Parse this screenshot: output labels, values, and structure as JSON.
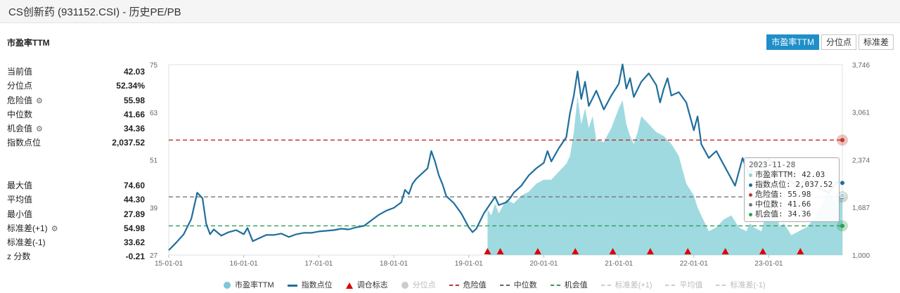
{
  "page_title": "CS创新药 (931152.CSI) - 历史PE/PB",
  "section_title": "市盈率TTM",
  "tabs": [
    {
      "label": "市盈率TTM",
      "active": true
    },
    {
      "label": "分位点",
      "active": false
    },
    {
      "label": "标准差",
      "active": false
    }
  ],
  "stats_top": [
    {
      "label": "当前值",
      "value": "42.03",
      "gear": false
    },
    {
      "label": "分位点",
      "value": "52.34%",
      "gear": false
    },
    {
      "label": "危险值",
      "value": "55.98",
      "gear": true
    },
    {
      "label": "中位数",
      "value": "41.66",
      "gear": false
    },
    {
      "label": "机会值",
      "value": "34.36",
      "gear": true
    },
    {
      "label": "指数点位",
      "value": "2,037.52",
      "gear": false
    }
  ],
  "stats_bottom": [
    {
      "label": "最大值",
      "value": "74.60",
      "gear": false
    },
    {
      "label": "平均值",
      "value": "44.30",
      "gear": false
    },
    {
      "label": "最小值",
      "value": "27.89",
      "gear": false
    },
    {
      "label": "标准差(+1)",
      "value": "54.98",
      "gear": true
    },
    {
      "label": "标准差(-1)",
      "value": "33.62",
      "gear": false
    },
    {
      "label": "z 分数",
      "value": "-0.21",
      "gear": false
    }
  ],
  "tooltip": {
    "date": "2023-11-28",
    "rows": [
      {
        "label": "市盈率TTM: 42.03",
        "color": "#8fd3dc"
      },
      {
        "label": "指数点位: 2,037.52",
        "color": "#1f6e9c"
      },
      {
        "label": "危险值: 55.98",
        "color": "#c0392b"
      },
      {
        "label": "中位数: 41.66",
        "color": "#777777"
      },
      {
        "label": "机会值: 34.36",
        "color": "#2e9e55"
      }
    ]
  },
  "legend": [
    {
      "label": "市盈率TTM",
      "symbol": "circle",
      "color": "#7cc8d4",
      "off": false
    },
    {
      "label": "指数点位",
      "symbol": "line",
      "color": "#1f6e9c",
      "off": false
    },
    {
      "label": "调仓标志",
      "symbol": "triangle",
      "color": "#e00000",
      "off": false
    },
    {
      "label": "分位点",
      "symbol": "circle",
      "color": "#cccccc",
      "off": true
    },
    {
      "label": "危险值",
      "symbol": "dash",
      "color": "#c0392b",
      "off": false
    },
    {
      "label": "中位数",
      "symbol": "dash",
      "color": "#666666",
      "off": false
    },
    {
      "label": "机会值",
      "symbol": "dash",
      "color": "#2e9e55",
      "off": false
    },
    {
      "label": "标准差(+1)",
      "symbol": "dash",
      "color": "#cccccc",
      "off": true
    },
    {
      "label": "平均值",
      "symbol": "dash",
      "color": "#cccccc",
      "off": true
    },
    {
      "label": "标准差(-1)",
      "symbol": "dash",
      "color": "#cccccc",
      "off": true
    }
  ],
  "chart_data": {
    "type": "line",
    "left_axis": {
      "ticks": [
        27,
        39,
        51,
        63,
        75
      ],
      "labels": [
        "27",
        "39",
        "51",
        "63",
        "75"
      ],
      "range": [
        27,
        75
      ]
    },
    "right_axis": {
      "ticks": [
        1000,
        1687,
        2374,
        3061,
        3746
      ],
      "labels": [
        "1,000",
        "1,687",
        "2,374",
        "3,061",
        "3,746"
      ],
      "range": [
        1000,
        3746
      ]
    },
    "x_ticks": [
      {
        "label": "15-01-01",
        "t": 2015.0
      },
      {
        "label": "16-01-01",
        "t": 2016.0
      },
      {
        "label": "17-01-01",
        "t": 2017.0
      },
      {
        "label": "18-01-01",
        "t": 2018.0
      },
      {
        "label": "19-01-01",
        "t": 2019.0
      },
      {
        "label": "20-01-01",
        "t": 2020.0
      },
      {
        "label": "21-01-01",
        "t": 2021.0
      },
      {
        "label": "22-01-01",
        "t": 2022.0
      },
      {
        "label": "23-01-01",
        "t": 2023.0
      }
    ],
    "x_range": [
      2015.0,
      2023.98
    ],
    "hlines": [
      {
        "name": "危险值",
        "value": 55.98,
        "color": "#c0392b"
      },
      {
        "name": "中位数",
        "value": 41.66,
        "color": "#777777"
      },
      {
        "name": "机会值",
        "value": 34.36,
        "color": "#2e9e55"
      }
    ],
    "series": [
      {
        "name": "指数点位",
        "axis": "right",
        "color": "#1f6e9c",
        "points": [
          [
            2015.0,
            1070
          ],
          [
            2015.1,
            1180
          ],
          [
            2015.2,
            1300
          ],
          [
            2015.3,
            1520
          ],
          [
            2015.38,
            1900
          ],
          [
            2015.45,
            1820
          ],
          [
            2015.5,
            1450
          ],
          [
            2015.55,
            1300
          ],
          [
            2015.6,
            1370
          ],
          [
            2015.7,
            1280
          ],
          [
            2015.8,
            1330
          ],
          [
            2015.9,
            1360
          ],
          [
            2016.0,
            1300
          ],
          [
            2016.05,
            1390
          ],
          [
            2016.12,
            1200
          ],
          [
            2016.2,
            1240
          ],
          [
            2016.3,
            1290
          ],
          [
            2016.4,
            1290
          ],
          [
            2016.5,
            1310
          ],
          [
            2016.6,
            1260
          ],
          [
            2016.7,
            1300
          ],
          [
            2016.8,
            1320
          ],
          [
            2016.9,
            1320
          ],
          [
            2017.0,
            1340
          ],
          [
            2017.1,
            1350
          ],
          [
            2017.2,
            1360
          ],
          [
            2017.3,
            1380
          ],
          [
            2017.4,
            1370
          ],
          [
            2017.5,
            1400
          ],
          [
            2017.6,
            1420
          ],
          [
            2017.7,
            1500
          ],
          [
            2017.8,
            1580
          ],
          [
            2017.9,
            1640
          ],
          [
            2018.0,
            1680
          ],
          [
            2018.1,
            1760
          ],
          [
            2018.15,
            1940
          ],
          [
            2018.2,
            1880
          ],
          [
            2018.25,
            2030
          ],
          [
            2018.3,
            2100
          ],
          [
            2018.4,
            2200
          ],
          [
            2018.45,
            2250
          ],
          [
            2018.5,
            2500
          ],
          [
            2018.55,
            2350
          ],
          [
            2018.6,
            2150
          ],
          [
            2018.65,
            2020
          ],
          [
            2018.7,
            1850
          ],
          [
            2018.8,
            1750
          ],
          [
            2018.9,
            1600
          ],
          [
            2019.0,
            1400
          ],
          [
            2019.05,
            1330
          ],
          [
            2019.1,
            1380
          ],
          [
            2019.2,
            1600
          ],
          [
            2019.3,
            1760
          ],
          [
            2019.35,
            1840
          ],
          [
            2019.4,
            1720
          ],
          [
            2019.5,
            1760
          ],
          [
            2019.55,
            1820
          ],
          [
            2019.6,
            1900
          ],
          [
            2019.7,
            2000
          ],
          [
            2019.8,
            2150
          ],
          [
            2019.9,
            2250
          ],
          [
            2020.0,
            2330
          ],
          [
            2020.05,
            2500
          ],
          [
            2020.1,
            2350
          ],
          [
            2020.2,
            2540
          ],
          [
            2020.3,
            2700
          ],
          [
            2020.35,
            3050
          ],
          [
            2020.4,
            3300
          ],
          [
            2020.45,
            3650
          ],
          [
            2020.5,
            3250
          ],
          [
            2020.55,
            3500
          ],
          [
            2020.6,
            3150
          ],
          [
            2020.7,
            3370
          ],
          [
            2020.8,
            3100
          ],
          [
            2020.9,
            3300
          ],
          [
            2021.0,
            3470
          ],
          [
            2021.05,
            3750
          ],
          [
            2021.1,
            3400
          ],
          [
            2021.15,
            3550
          ],
          [
            2021.2,
            3280
          ],
          [
            2021.3,
            3500
          ],
          [
            2021.4,
            3620
          ],
          [
            2021.5,
            3450
          ],
          [
            2021.55,
            3200
          ],
          [
            2021.6,
            3400
          ],
          [
            2021.65,
            3550
          ],
          [
            2021.7,
            3300
          ],
          [
            2021.8,
            3350
          ],
          [
            2021.9,
            3200
          ],
          [
            2022.0,
            2800
          ],
          [
            2022.05,
            3000
          ],
          [
            2022.1,
            2600
          ],
          [
            2022.2,
            2400
          ],
          [
            2022.3,
            2500
          ],
          [
            2022.4,
            2300
          ],
          [
            2022.5,
            2100
          ],
          [
            2022.55,
            2000
          ],
          [
            2022.6,
            2200
          ],
          [
            2022.65,
            2400
          ],
          [
            2022.7,
            2250
          ],
          [
            2022.75,
            2150
          ],
          [
            2022.8,
            2350
          ],
          [
            2022.9,
            2300
          ],
          [
            2023.0,
            2380
          ],
          [
            2023.1,
            2250
          ],
          [
            2023.2,
            2150
          ],
          [
            2023.3,
            2050
          ],
          [
            2023.4,
            2000
          ],
          [
            2023.5,
            2100
          ],
          [
            2023.6,
            2000
          ],
          [
            2023.7,
            1950
          ],
          [
            2023.8,
            1900
          ],
          [
            2023.9,
            2050
          ],
          [
            2023.98,
            2040
          ]
        ]
      },
      {
        "name": "市盈率TTM",
        "axis": "left",
        "color": "#8fd3dc",
        "points": [
          [
            2019.25,
            38.5
          ],
          [
            2019.3,
            37.0
          ],
          [
            2019.35,
            40.0
          ],
          [
            2019.4,
            37.5
          ],
          [
            2019.5,
            41.0
          ],
          [
            2019.6,
            40.0
          ],
          [
            2019.7,
            42.0
          ],
          [
            2019.8,
            43.0
          ],
          [
            2019.9,
            45.0
          ],
          [
            2020.0,
            46.0
          ],
          [
            2020.1,
            46.0
          ],
          [
            2020.2,
            48.0
          ],
          [
            2020.3,
            50.0
          ],
          [
            2020.35,
            52.0
          ],
          [
            2020.4,
            58.0
          ],
          [
            2020.45,
            67.0
          ],
          [
            2020.5,
            60.0
          ],
          [
            2020.55,
            64.0
          ],
          [
            2020.6,
            59.0
          ],
          [
            2020.65,
            62.0
          ],
          [
            2020.7,
            56.0
          ],
          [
            2020.8,
            55.5
          ],
          [
            2020.9,
            59.0
          ],
          [
            2021.0,
            64.0
          ],
          [
            2021.05,
            66.0
          ],
          [
            2021.1,
            60.0
          ],
          [
            2021.15,
            57.0
          ],
          [
            2021.2,
            55.0
          ],
          [
            2021.25,
            58.0
          ],
          [
            2021.3,
            62.0
          ],
          [
            2021.4,
            60.0
          ],
          [
            2021.5,
            58.0
          ],
          [
            2021.6,
            57.0
          ],
          [
            2021.7,
            55.0
          ],
          [
            2021.8,
            52.0
          ],
          [
            2021.9,
            45.0
          ],
          [
            2022.0,
            42.0
          ],
          [
            2022.05,
            39.0
          ],
          [
            2022.1,
            37.0
          ],
          [
            2022.2,
            33.0
          ],
          [
            2022.3,
            34.0
          ],
          [
            2022.4,
            36.0
          ],
          [
            2022.5,
            37.0
          ],
          [
            2022.6,
            34.0
          ],
          [
            2022.7,
            33.0
          ],
          [
            2022.75,
            35.0
          ],
          [
            2022.8,
            34.0
          ],
          [
            2022.9,
            33.0
          ],
          [
            2023.0,
            40.0
          ],
          [
            2023.05,
            38.0
          ],
          [
            2023.1,
            37.0
          ],
          [
            2023.15,
            34.0
          ],
          [
            2023.2,
            35.0
          ],
          [
            2023.3,
            32.0
          ],
          [
            2023.4,
            33.0
          ],
          [
            2023.5,
            34.0
          ],
          [
            2023.6,
            36.0
          ],
          [
            2023.7,
            40.0
          ],
          [
            2023.8,
            43.0
          ],
          [
            2023.85,
            41.0
          ],
          [
            2023.9,
            42.0
          ],
          [
            2023.98,
            42.03
          ]
        ]
      }
    ],
    "rebalance_markers": [
      2019.25,
      2019.42,
      2019.92,
      2020.42,
      2020.92,
      2021.42,
      2021.92,
      2022.42,
      2022.92,
      2023.42
    ]
  }
}
